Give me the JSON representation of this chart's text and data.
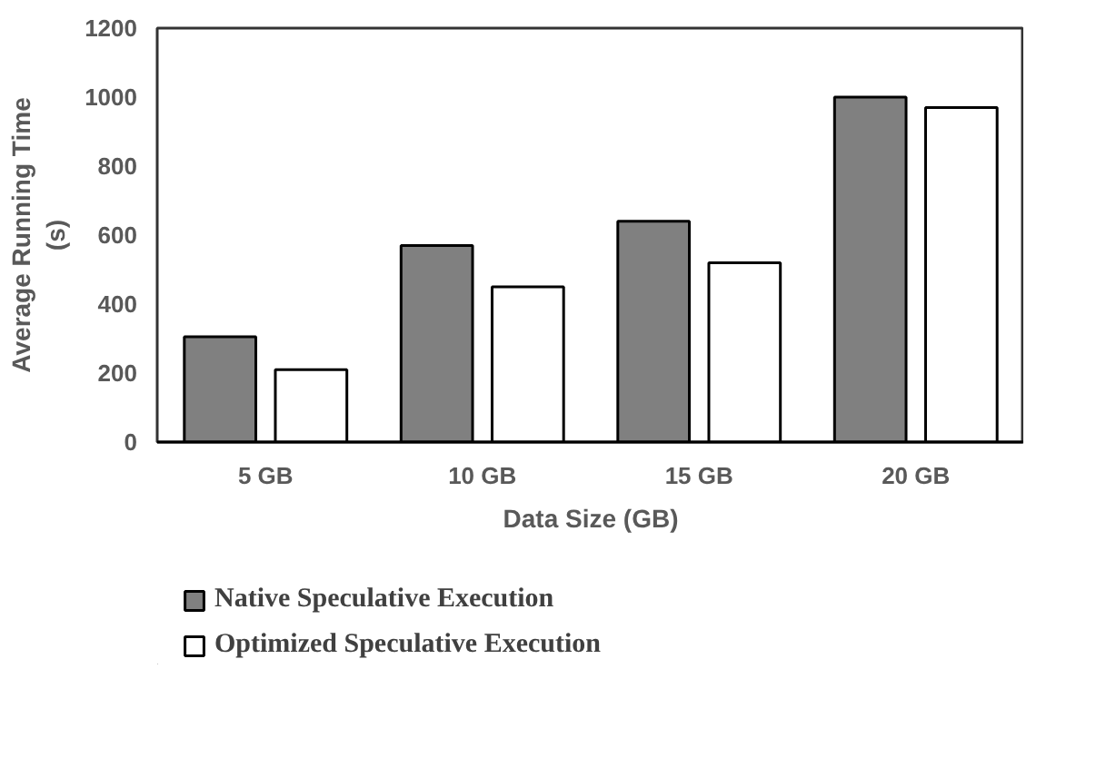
{
  "chart_data": {
    "type": "bar",
    "xlabel": "Data Size (GB)",
    "ylabel": "Average Running Time\n(s)",
    "categories": [
      "5 GB",
      "10 GB",
      "15 GB",
      "20 GB"
    ],
    "series": [
      {
        "name": "Native Speculative Execution",
        "color": "#808080",
        "values": [
          305,
          570,
          640,
          1000
        ]
      },
      {
        "name": "Optimized Speculative Execution",
        "color": "#ffffff",
        "values": [
          210,
          450,
          520,
          970
        ]
      }
    ],
    "ylim": [
      0,
      1200
    ],
    "yticks": [
      0,
      200,
      400,
      600,
      800,
      1000,
      1200
    ],
    "grid": false,
    "legend": "bottom"
  }
}
